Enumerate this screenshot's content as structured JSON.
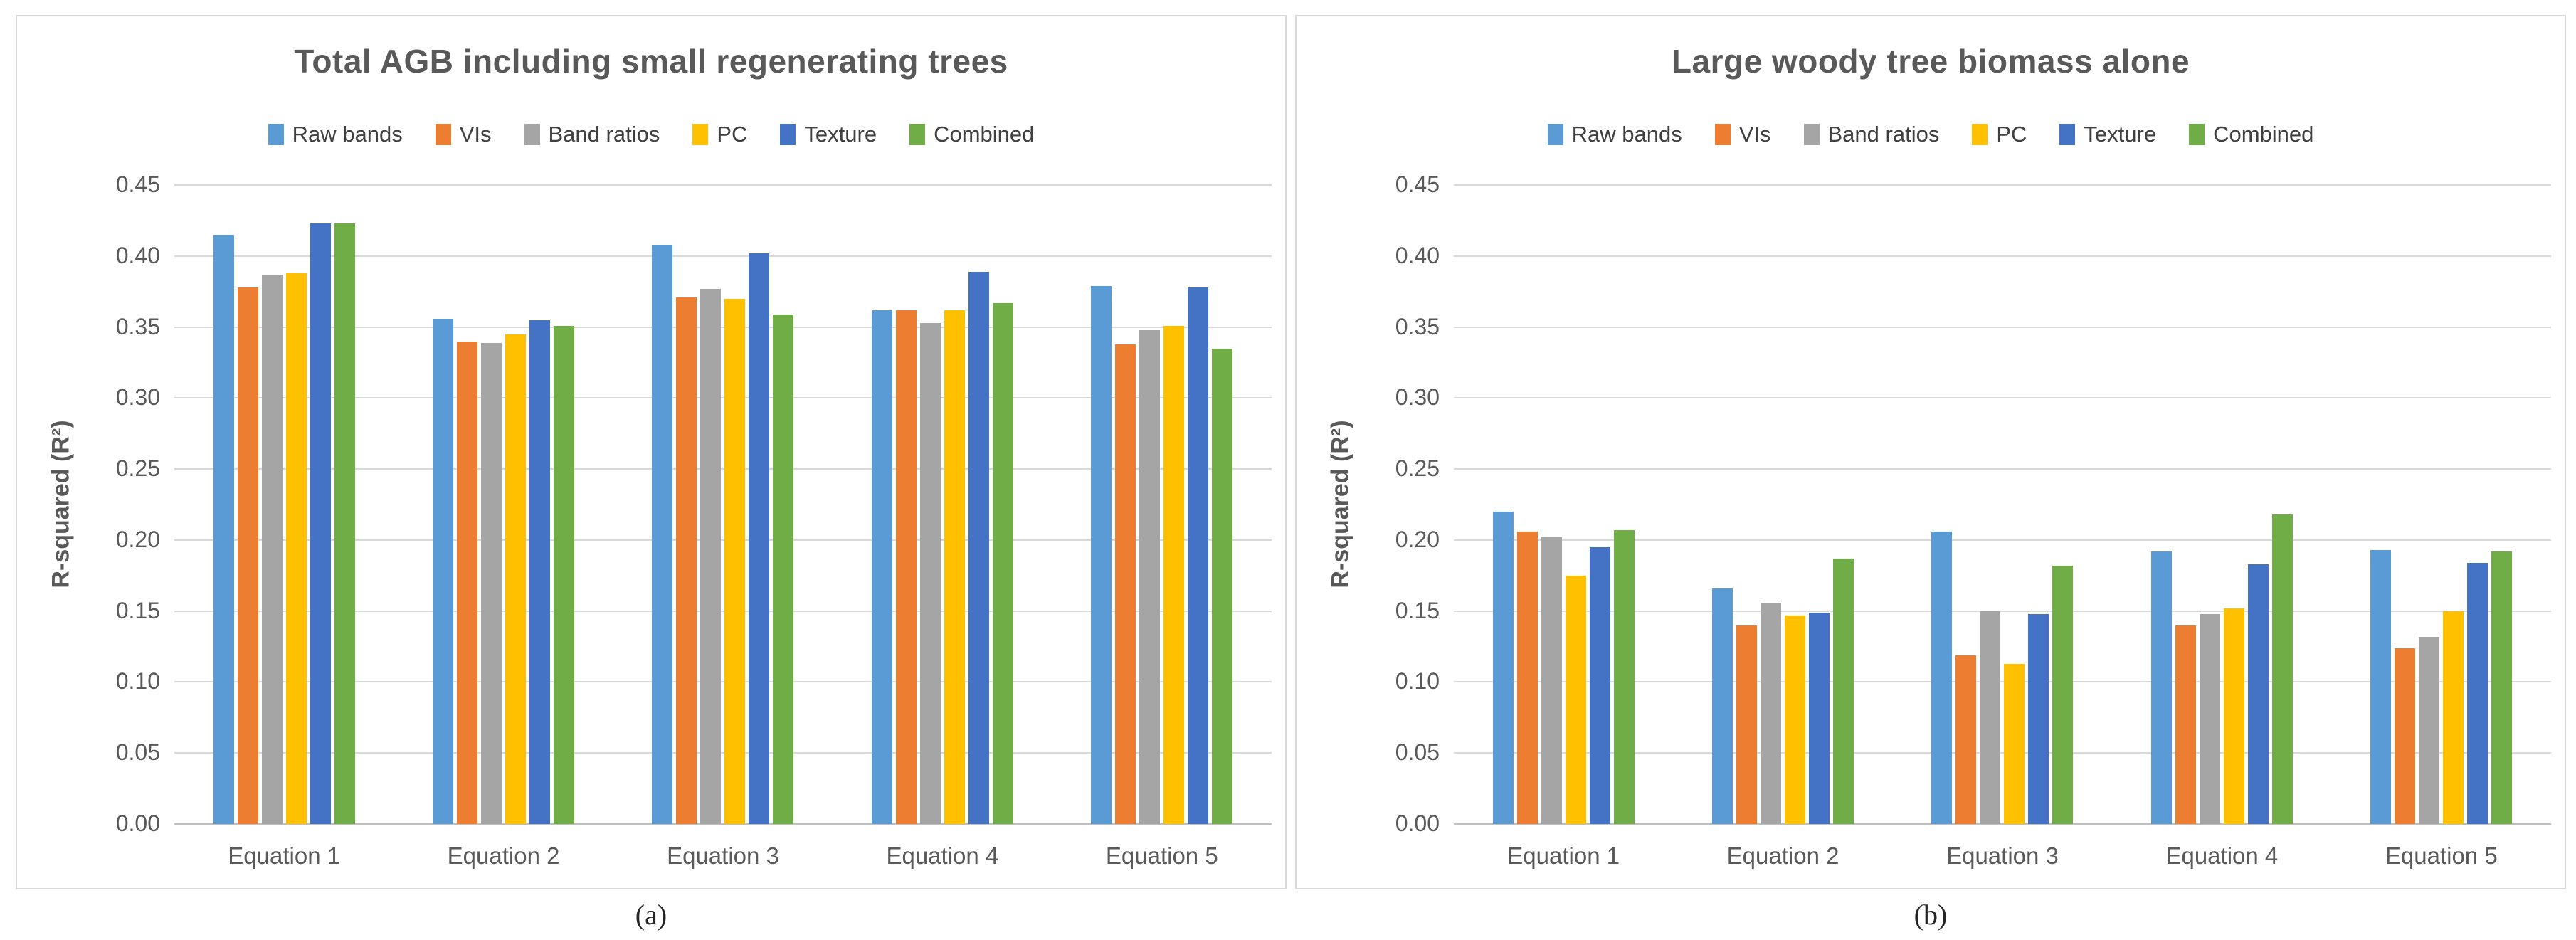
{
  "axis": {
    "ylabel": "R-squared (R²)",
    "ymin": 0.0,
    "ymax": 0.45,
    "ystep": 0.05,
    "tick_decimals": 2,
    "grid_color": "#d9d9d9",
    "axisline_color": "#bfbfbf",
    "text_color": "#595959"
  },
  "palette": {
    "raw_bands": "#5B9BD5",
    "vis": "#ED7D31",
    "band_ratios": "#A5A5A5",
    "pc": "#FFC000",
    "texture": "#4472C4",
    "combined": "#70AD47"
  },
  "chart_data": [
    {
      "type": "bar",
      "title": "Total AGB including small regenerating trees",
      "caption": "(a)",
      "ylabel": "R-squared (R²)",
      "ylim": [
        0.0,
        0.45
      ],
      "grid": true,
      "legend_position": "top",
      "categories": [
        "Equation 1",
        "Equation 2",
        "Equation 3",
        "Equation 4",
        "Equation 5"
      ],
      "series": [
        {
          "name": "Raw bands",
          "color": "#5B9BD5",
          "values": [
            0.415,
            0.356,
            0.408,
            0.362,
            0.379
          ]
        },
        {
          "name": "VIs",
          "color": "#ED7D31",
          "values": [
            0.378,
            0.34,
            0.371,
            0.362,
            0.338
          ]
        },
        {
          "name": "Band ratios",
          "color": "#A5A5A5",
          "values": [
            0.387,
            0.339,
            0.377,
            0.353,
            0.348
          ]
        },
        {
          "name": "PC",
          "color": "#FFC000",
          "values": [
            0.388,
            0.345,
            0.37,
            0.362,
            0.351
          ]
        },
        {
          "name": "Texture",
          "color": "#4472C4",
          "values": [
            0.423,
            0.355,
            0.402,
            0.389,
            0.378
          ]
        },
        {
          "name": "Combined",
          "color": "#70AD47",
          "values": [
            0.423,
            0.351,
            0.359,
            0.367,
            0.335
          ]
        }
      ]
    },
    {
      "type": "bar",
      "title": "Large woody tree biomass alone",
      "caption": "(b)",
      "ylabel": "R-squared (R²)",
      "ylim": [
        0.0,
        0.45
      ],
      "grid": true,
      "legend_position": "top",
      "categories": [
        "Equation 1",
        "Equation 2",
        "Equation 3",
        "Equation 4",
        "Equation 5"
      ],
      "series": [
        {
          "name": "Raw bands",
          "color": "#5B9BD5",
          "values": [
            0.22,
            0.166,
            0.206,
            0.192,
            0.193
          ]
        },
        {
          "name": "VIs",
          "color": "#ED7D31",
          "values": [
            0.206,
            0.14,
            0.119,
            0.14,
            0.124
          ]
        },
        {
          "name": "Band ratios",
          "color": "#A5A5A5",
          "values": [
            0.202,
            0.156,
            0.15,
            0.148,
            0.132
          ]
        },
        {
          "name": "PC",
          "color": "#FFC000",
          "values": [
            0.175,
            0.147,
            0.113,
            0.152,
            0.15
          ]
        },
        {
          "name": "Texture",
          "color": "#4472C4",
          "values": [
            0.195,
            0.149,
            0.148,
            0.183,
            0.184
          ]
        },
        {
          "name": "Combined",
          "color": "#70AD47",
          "values": [
            0.207,
            0.187,
            0.182,
            0.218,
            0.192
          ]
        }
      ]
    }
  ]
}
